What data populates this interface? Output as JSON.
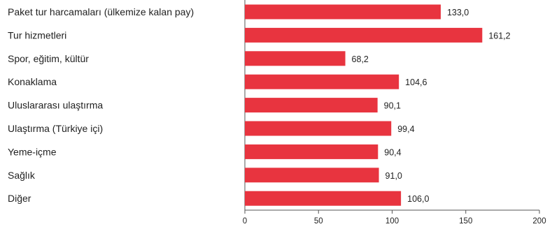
{
  "chart_data": {
    "type": "bar",
    "orientation": "horizontal",
    "title": "",
    "xlabel": "",
    "ylabel": "",
    "categories": [
      "Paket tur harcamaları (ülkemize kalan pay)",
      "Tur hizmetleri",
      "Spor, eğitim, kültür",
      "Konaklama",
      "Uluslararası ulaştırma",
      "Ulaştırma (Türkiye içi)",
      "Yeme-içme",
      "Sağlık",
      "Diğer"
    ],
    "values": [
      133.0,
      161.2,
      68.2,
      104.6,
      90.1,
      99.4,
      90.4,
      91.0,
      106.0
    ],
    "value_labels": [
      "133,0",
      "161,2",
      "68,2",
      "104,6",
      "90,1",
      "99,4",
      "90,4",
      "91,0",
      "106,0"
    ],
    "xlim": [
      0,
      200
    ],
    "xticks": [
      0,
      50,
      100,
      150,
      200
    ],
    "xtick_labels": [
      "0",
      "50",
      "100",
      "150",
      "200"
    ],
    "grid": false,
    "legend": "none",
    "colors": {
      "bar": "#e8343f",
      "axis": "#555555",
      "text": "#222222"
    }
  }
}
